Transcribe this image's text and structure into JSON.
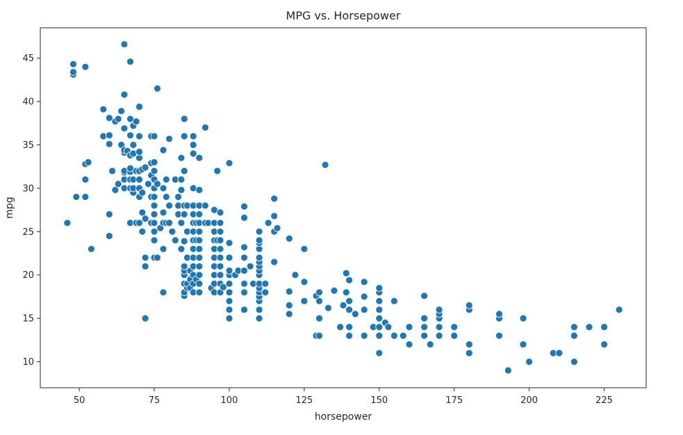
{
  "chart_data": {
    "type": "scatter",
    "title": "MPG vs. Horsepower",
    "xlabel": "horsepower",
    "ylabel": "mpg",
    "xlim": [
      37,
      239
    ],
    "ylim": [
      7,
      48.5
    ],
    "xticks": [
      50,
      75,
      100,
      125,
      150,
      175,
      200,
      225
    ],
    "yticks": [
      10,
      15,
      20,
      25,
      30,
      35,
      40,
      45
    ],
    "grid": false,
    "marker_color": "#1f77b4",
    "marker_edge_color": "#ffffff",
    "series": [
      {
        "points": [
          [
            46,
            26
          ],
          [
            48,
            43.1
          ],
          [
            48,
            43.4
          ],
          [
            48,
            44.3
          ],
          [
            49,
            29
          ],
          [
            52,
            29
          ],
          [
            52,
            31
          ],
          [
            52,
            32.8
          ],
          [
            52,
            44
          ],
          [
            53,
            33
          ],
          [
            54,
            23
          ],
          [
            58,
            36
          ],
          [
            58,
            39.1
          ],
          [
            60,
            24.5
          ],
          [
            60,
            27
          ],
          [
            60,
            35.1
          ],
          [
            60,
            36.1
          ],
          [
            60,
            38.1
          ],
          [
            61,
            32
          ],
          [
            62,
            29.8
          ],
          [
            62,
            37.7
          ],
          [
            63,
            38
          ],
          [
            63,
            30.5
          ],
          [
            64,
            35
          ],
          [
            64,
            38.9
          ],
          [
            65,
            30
          ],
          [
            65,
            31
          ],
          [
            65,
            31.8
          ],
          [
            65,
            32
          ],
          [
            65,
            34.1
          ],
          [
            65,
            34.4
          ],
          [
            65,
            36.9
          ],
          [
            65,
            40.8
          ],
          [
            65,
            46.6
          ],
          [
            66,
            34.3
          ],
          [
            67,
            26
          ],
          [
            67,
            30
          ],
          [
            67,
            31
          ],
          [
            67,
            31.9
          ],
          [
            67,
            32.3
          ],
          [
            67,
            33.8
          ],
          [
            67,
            36.1
          ],
          [
            67,
            38
          ],
          [
            67,
            44.6
          ],
          [
            68,
            29.5
          ],
          [
            68,
            30
          ],
          [
            68,
            31
          ],
          [
            68,
            34
          ],
          [
            68,
            35
          ],
          [
            68,
            37.2
          ],
          [
            69,
            26
          ],
          [
            69,
            32
          ],
          [
            69,
            37.7
          ],
          [
            70,
            26
          ],
          [
            70,
            29
          ],
          [
            70,
            30
          ],
          [
            70,
            31
          ],
          [
            70,
            32
          ],
          [
            70,
            33.5
          ],
          [
            70,
            34.2
          ],
          [
            70,
            36
          ],
          [
            70,
            39.4
          ],
          [
            71,
            25
          ],
          [
            71,
            27.2
          ],
          [
            71,
            29.5
          ],
          [
            71,
            32.2
          ],
          [
            72,
            15
          ],
          [
            72,
            21
          ],
          [
            72,
            22
          ],
          [
            72,
            26.5
          ],
          [
            72,
            32.4
          ],
          [
            73,
            30.5
          ],
          [
            74,
            26
          ],
          [
            74,
            29
          ],
          [
            74,
            31.5
          ],
          [
            74,
            32.9
          ],
          [
            74,
            36
          ],
          [
            75,
            22
          ],
          [
            75,
            24
          ],
          [
            75,
            25
          ],
          [
            75,
            26
          ],
          [
            75,
            27
          ],
          [
            75,
            28
          ],
          [
            75,
            29
          ],
          [
            75,
            30
          ],
          [
            75,
            31
          ],
          [
            75,
            32
          ],
          [
            75,
            33
          ],
          [
            75,
            36
          ],
          [
            76,
            22
          ],
          [
            76,
            30.5
          ],
          [
            76,
            41.5
          ],
          [
            77,
            25.4
          ],
          [
            78,
            18
          ],
          [
            78,
            23
          ],
          [
            78,
            26
          ],
          [
            78,
            27.2
          ],
          [
            78,
            30
          ],
          [
            78,
            34.4
          ],
          [
            79,
            26
          ],
          [
            79,
            29
          ],
          [
            79,
            31
          ],
          [
            80,
            28
          ],
          [
            80,
            26
          ],
          [
            80,
            35.7
          ],
          [
            81,
            25
          ],
          [
            82,
            24
          ],
          [
            82,
            31
          ],
          [
            83,
            27
          ],
          [
            83,
            28
          ],
          [
            83,
            29
          ],
          [
            84,
            23
          ],
          [
            84,
            26
          ],
          [
            84,
            29.8
          ],
          [
            84,
            31
          ],
          [
            84,
            33.5
          ],
          [
            85,
            17.6
          ],
          [
            85,
            18
          ],
          [
            85,
            19
          ],
          [
            85,
            20
          ],
          [
            85,
            20.5
          ],
          [
            85,
            21
          ],
          [
            85,
            23.9
          ],
          [
            85,
            27
          ],
          [
            85,
            28
          ],
          [
            85,
            32
          ],
          [
            85,
            36
          ],
          [
            85,
            38
          ],
          [
            86,
            18.5
          ],
          [
            86,
            19
          ],
          [
            86,
            22
          ],
          [
            86,
            25
          ],
          [
            86,
            28
          ],
          [
            87,
            18.5
          ],
          [
            87,
            19.5
          ],
          [
            87,
            20.5
          ],
          [
            88,
            18
          ],
          [
            88,
            19
          ],
          [
            88,
            20
          ],
          [
            88,
            21
          ],
          [
            88,
            22
          ],
          [
            88,
            23
          ],
          [
            88,
            24
          ],
          [
            88,
            25
          ],
          [
            88,
            26
          ],
          [
            88,
            27
          ],
          [
            88,
            28
          ],
          [
            88,
            30
          ],
          [
            88,
            34
          ],
          [
            88,
            35
          ],
          [
            88,
            36
          ],
          [
            89,
            19.5
          ],
          [
            89,
            24
          ],
          [
            89,
            26
          ],
          [
            90,
            18
          ],
          [
            90,
            19
          ],
          [
            90,
            20
          ],
          [
            90,
            21
          ],
          [
            90,
            22
          ],
          [
            90,
            23
          ],
          [
            90,
            24
          ],
          [
            90,
            25
          ],
          [
            90,
            26
          ],
          [
            90,
            27
          ],
          [
            90,
            28
          ],
          [
            90,
            29.8
          ],
          [
            90,
            33.5
          ],
          [
            92,
            26
          ],
          [
            92,
            28
          ],
          [
            92,
            37
          ],
          [
            93,
            26
          ],
          [
            94,
            18.5
          ],
          [
            95,
            18
          ],
          [
            95,
            19
          ],
          [
            95,
            20
          ],
          [
            95,
            21
          ],
          [
            95,
            22
          ],
          [
            95,
            23
          ],
          [
            95,
            24
          ],
          [
            95,
            25
          ],
          [
            95,
            26
          ],
          [
            95,
            27.5
          ],
          [
            96,
            24
          ],
          [
            96,
            32
          ],
          [
            97,
            18
          ],
          [
            97,
            19
          ],
          [
            97,
            20
          ],
          [
            97,
            21
          ],
          [
            97,
            22
          ],
          [
            97,
            23
          ],
          [
            97,
            24
          ],
          [
            97,
            25
          ],
          [
            97,
            26
          ],
          [
            97,
            27.2
          ],
          [
            98,
            18.6
          ],
          [
            100,
            15
          ],
          [
            100,
            16
          ],
          [
            100,
            17
          ],
          [
            100,
            18
          ],
          [
            100,
            19
          ],
          [
            100,
            20
          ],
          [
            100,
            20.5
          ],
          [
            100,
            22
          ],
          [
            100,
            23.7
          ],
          [
            100,
            32.9
          ],
          [
            102,
            20
          ],
          [
            103,
            20.5
          ],
          [
            105,
            16
          ],
          [
            105,
            18
          ],
          [
            105,
            19
          ],
          [
            105,
            20.5
          ],
          [
            105,
            22
          ],
          [
            105,
            23.2
          ],
          [
            105,
            26.6
          ],
          [
            105,
            27.9
          ],
          [
            107,
            21
          ],
          [
            108,
            19
          ],
          [
            110,
            15
          ],
          [
            110,
            16
          ],
          [
            110,
            17
          ],
          [
            110,
            17.5
          ],
          [
            110,
            18
          ],
          [
            110,
            18.5
          ],
          [
            110,
            19
          ],
          [
            110,
            20
          ],
          [
            110,
            20.5
          ],
          [
            110,
            21
          ],
          [
            110,
            21.5
          ],
          [
            110,
            22
          ],
          [
            110,
            23
          ],
          [
            110,
            23.7
          ],
          [
            110,
            24
          ],
          [
            110,
            25
          ],
          [
            112,
            18
          ],
          [
            112,
            19
          ],
          [
            113,
            26
          ],
          [
            115,
            21.5
          ],
          [
            115,
            25
          ],
          [
            115,
            26.8
          ],
          [
            115,
            28.8
          ],
          [
            116,
            25.4
          ],
          [
            120,
            15.5
          ],
          [
            120,
            16.5
          ],
          [
            120,
            18.1
          ],
          [
            120,
            24.2
          ],
          [
            122,
            20
          ],
          [
            125,
            17
          ],
          [
            125,
            19.2
          ],
          [
            125,
            23
          ],
          [
            129,
            13
          ],
          [
            129,
            17.6
          ],
          [
            130,
            13
          ],
          [
            130,
            15
          ],
          [
            130,
            17
          ],
          [
            130,
            18
          ],
          [
            132,
            32.7
          ],
          [
            133,
            16.2
          ],
          [
            135,
            18.2
          ],
          [
            137,
            14
          ],
          [
            138,
            16.5
          ],
          [
            139,
            18
          ],
          [
            139,
            20.2
          ],
          [
            140,
            13
          ],
          [
            140,
            14
          ],
          [
            140,
            16
          ],
          [
            140,
            17
          ],
          [
            140,
            19.4
          ],
          [
            142,
            15.5
          ],
          [
            145,
            13
          ],
          [
            145,
            16
          ],
          [
            145,
            17.5
          ],
          [
            145,
            19.2
          ],
          [
            148,
            14
          ],
          [
            150,
            11
          ],
          [
            150,
            13
          ],
          [
            150,
            14
          ],
          [
            150,
            15
          ],
          [
            150,
            16
          ],
          [
            150,
            17
          ],
          [
            150,
            18
          ],
          [
            150,
            18.5
          ],
          [
            152,
            14.5
          ],
          [
            153,
            14
          ],
          [
            155,
            13
          ],
          [
            155,
            17
          ],
          [
            158,
            13
          ],
          [
            160,
            12
          ],
          [
            160,
            14
          ],
          [
            165,
            13
          ],
          [
            165,
            14
          ],
          [
            165,
            15
          ],
          [
            165,
            17.6
          ],
          [
            167,
            12
          ],
          [
            170,
            13
          ],
          [
            170,
            14
          ],
          [
            170,
            15
          ],
          [
            170,
            15.5
          ],
          [
            170,
            16
          ],
          [
            175,
            13
          ],
          [
            175,
            14
          ],
          [
            180,
            11
          ],
          [
            180,
            12
          ],
          [
            180,
            16
          ],
          [
            180,
            16.5
          ],
          [
            190,
            13
          ],
          [
            190,
            15
          ],
          [
            190,
            15.5
          ],
          [
            193,
            9
          ],
          [
            198,
            12
          ],
          [
            198,
            15
          ],
          [
            200,
            10
          ],
          [
            208,
            11
          ],
          [
            210,
            11
          ],
          [
            215,
            10
          ],
          [
            215,
            13
          ],
          [
            215,
            14
          ],
          [
            220,
            14
          ],
          [
            225,
            12
          ],
          [
            225,
            14
          ],
          [
            230,
            16
          ]
        ]
      }
    ]
  }
}
